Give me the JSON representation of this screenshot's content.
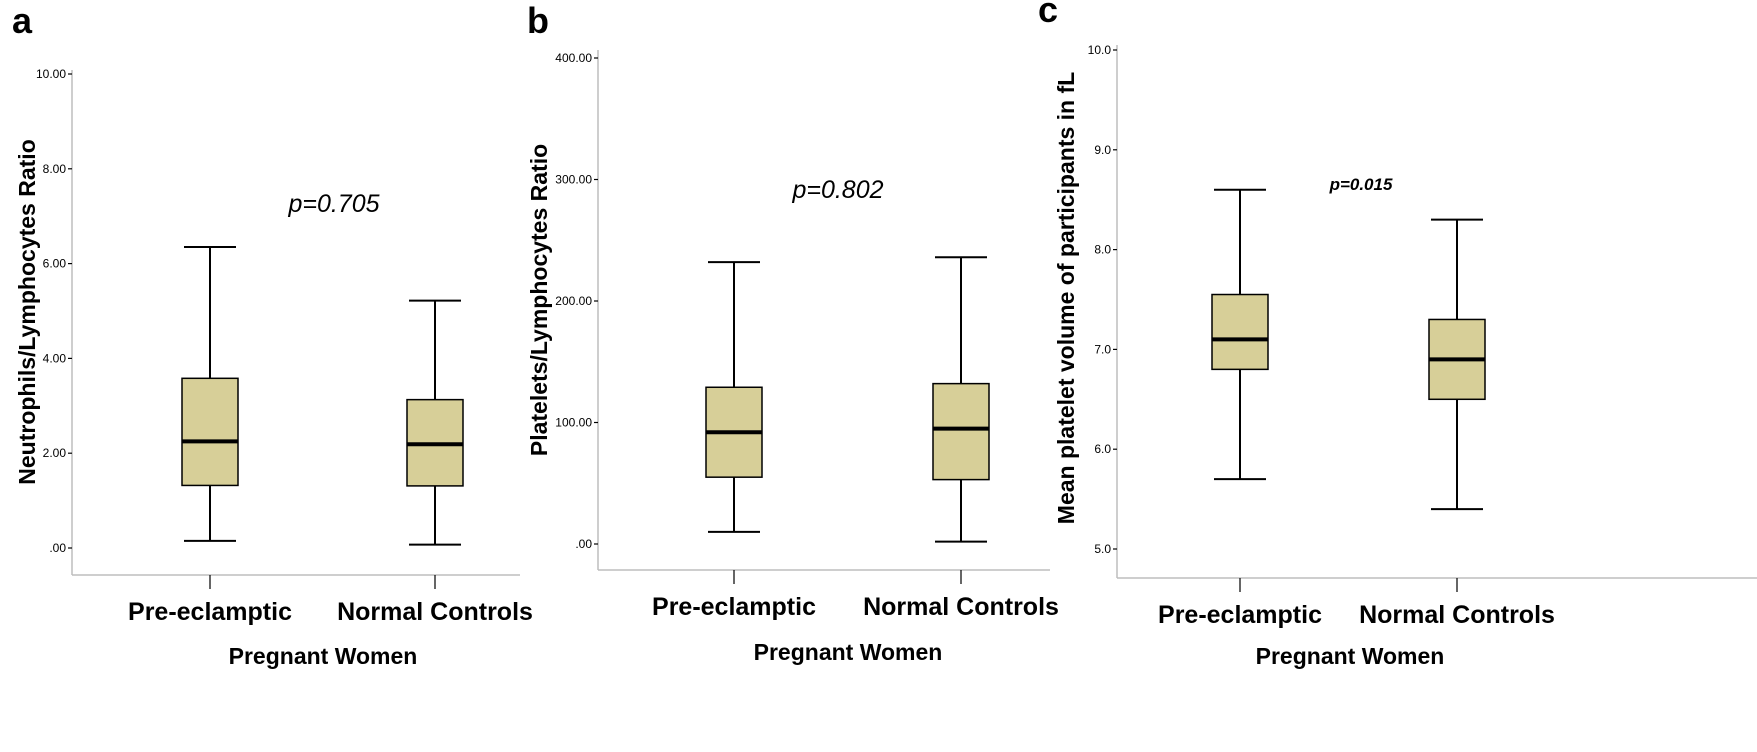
{
  "chart_data": [
    {
      "type": "boxplot",
      "panel_label": "a",
      "title": "",
      "xlabel": "Pregnant Women",
      "ylabel": "Neutrophils/Lymphocytes Ratio",
      "annotation": "p=0.705",
      "categories": [
        "Pre-eclamptic",
        "Normal Controls"
      ],
      "yticks": [
        ".00",
        "2.00",
        "4.00",
        "6.00",
        "8.00",
        "10.00"
      ],
      "ylim": [
        -0.5,
        10.0
      ],
      "tick_values": [
        0,
        2,
        4,
        6,
        8,
        10
      ],
      "boxes": [
        {
          "min": 0.15,
          "q1": 1.32,
          "median": 2.25,
          "q3": 3.58,
          "max": 6.35
        },
        {
          "min": 0.07,
          "q1": 1.31,
          "median": 2.19,
          "q3": 3.13,
          "max": 5.22
        }
      ],
      "box_color": "#d7cf98",
      "grid": false
    },
    {
      "type": "boxplot",
      "panel_label": "b",
      "title": "",
      "xlabel": "Pregnant Women",
      "ylabel": "Platelets/Lymphocytes Ratio",
      "annotation": "p=0.802",
      "categories": [
        "Pre-eclamptic",
        "Normal Controls"
      ],
      "yticks": [
        ".00",
        "100.00",
        "200.00",
        "300.00",
        "400.00"
      ],
      "ylim": [
        -20,
        400
      ],
      "tick_values": [
        0,
        100,
        200,
        300,
        400
      ],
      "boxes": [
        {
          "min": 10,
          "q1": 55,
          "median": 92,
          "q3": 129,
          "max": 232
        },
        {
          "min": 2,
          "q1": 53,
          "median": 95,
          "q3": 132,
          "max": 236
        }
      ],
      "box_color": "#d7cf98",
      "grid": false
    },
    {
      "type": "boxplot",
      "panel_label": "c",
      "title": "",
      "xlabel": "Pregnant Women",
      "ylabel": "Mean platelet volume of participants in fL",
      "annotation": "p=0.015",
      "categories": [
        "Pre-eclamptic",
        "Normal Controls"
      ],
      "yticks": [
        "5.0",
        "6.0",
        "7.0",
        "8.0",
        "9.0",
        "10.0"
      ],
      "ylim": [
        4.7,
        10.0
      ],
      "tick_values": [
        5,
        6,
        7,
        8,
        9,
        10
      ],
      "boxes": [
        {
          "min": 5.7,
          "q1": 6.8,
          "median": 7.1,
          "q3": 7.55,
          "max": 8.6
        },
        {
          "min": 5.4,
          "q1": 6.5,
          "median": 6.9,
          "q3": 7.3,
          "max": 8.3
        }
      ],
      "box_color": "#d7cf98",
      "grid": false
    }
  ]
}
